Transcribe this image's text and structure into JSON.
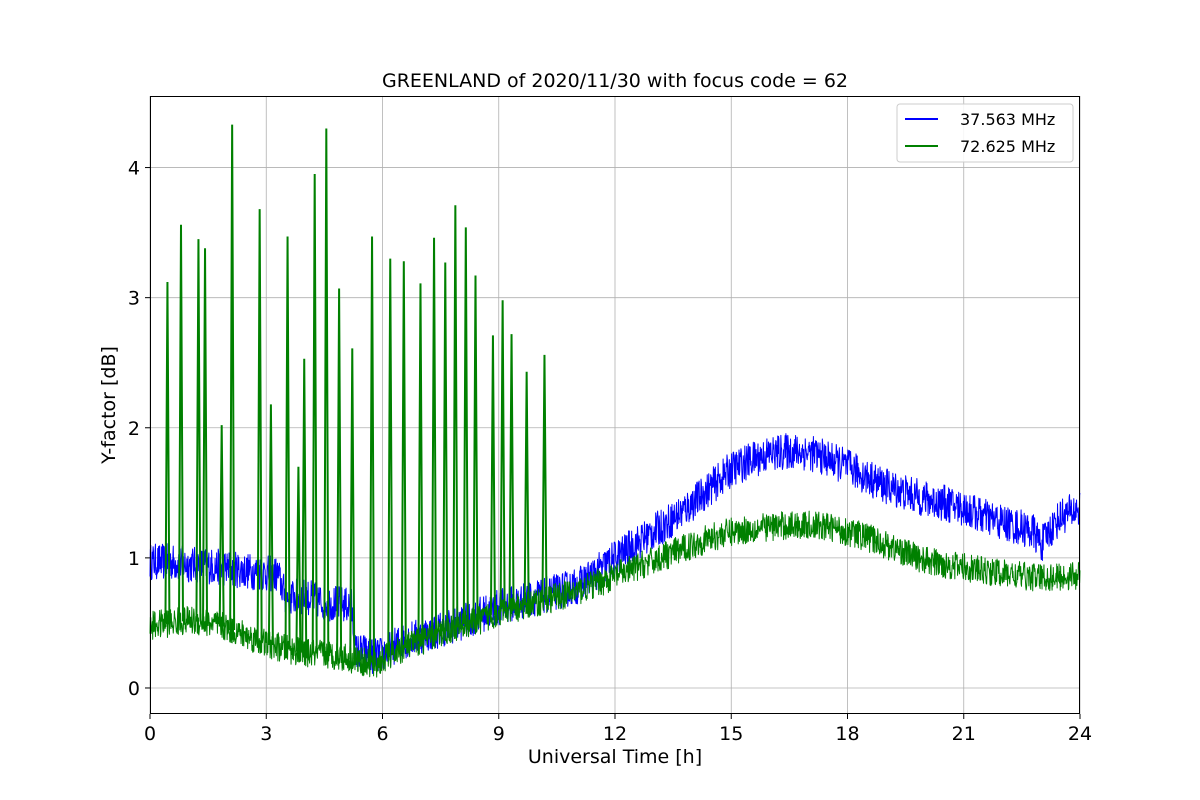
{
  "chart_data": {
    "type": "line",
    "title": "GREENLAND of 2020/11/30 with focus code = 62",
    "xlabel": "Universal Time [h]",
    "ylabel": "Y-factor [dB]",
    "xlim": [
      0,
      24
    ],
    "ylim": [
      -0.2,
      4.55
    ],
    "xticks": [
      0,
      3,
      6,
      9,
      12,
      15,
      18,
      21,
      24
    ],
    "yticks": [
      0,
      1,
      2,
      3,
      4
    ],
    "grid": true,
    "legend_position": "top-right",
    "series": [
      {
        "name": "37.563 MHz",
        "color": "#0000ff",
        "noise": 0.14,
        "x": [
          0,
          0.5,
          1,
          1.5,
          2,
          2.5,
          3,
          3.3,
          3.5,
          4,
          4.5,
          5,
          5.2,
          5.3,
          5.5,
          5.8,
          6,
          6.3,
          6.5,
          7,
          7.5,
          8,
          8.5,
          9,
          9.5,
          10,
          10.5,
          11,
          11.5,
          12,
          12.5,
          13,
          13.5,
          14,
          14.5,
          15,
          15.5,
          16,
          16.5,
          17,
          17.5,
          18,
          18.5,
          19,
          19.5,
          20,
          20.5,
          21,
          21.5,
          22,
          22.5,
          22.8,
          23,
          23.2,
          23.5,
          24
        ],
        "values": [
          0.97,
          0.97,
          0.95,
          0.94,
          0.92,
          0.9,
          0.88,
          0.87,
          0.7,
          0.7,
          0.66,
          0.64,
          0.63,
          0.28,
          0.28,
          0.24,
          0.26,
          0.32,
          0.36,
          0.4,
          0.45,
          0.5,
          0.56,
          0.62,
          0.66,
          0.7,
          0.74,
          0.78,
          0.88,
          1.0,
          1.1,
          1.2,
          1.3,
          1.42,
          1.55,
          1.68,
          1.75,
          1.8,
          1.82,
          1.81,
          1.76,
          1.7,
          1.62,
          1.55,
          1.5,
          1.45,
          1.42,
          1.38,
          1.32,
          1.27,
          1.23,
          1.2,
          1.1,
          1.2,
          1.32,
          1.38
        ]
      },
      {
        "name": "72.625 MHz",
        "color": "#008000",
        "noise": 0.11,
        "x": [
          0,
          0.5,
          1,
          1.5,
          2,
          2.5,
          3,
          3.5,
          4,
          4.5,
          5,
          5.5,
          5.8,
          6,
          6.5,
          7,
          7.5,
          8,
          8.5,
          9,
          9.5,
          10,
          10.5,
          11,
          11.5,
          12,
          12.5,
          13,
          13.5,
          14,
          14.5,
          15,
          15.5,
          16,
          16.5,
          17,
          17.5,
          18,
          18.5,
          19,
          19.5,
          20,
          20.5,
          21,
          21.5,
          22,
          22.5,
          23,
          23.5,
          24
        ],
        "values": [
          0.48,
          0.5,
          0.52,
          0.5,
          0.46,
          0.4,
          0.34,
          0.3,
          0.27,
          0.26,
          0.24,
          0.2,
          0.17,
          0.22,
          0.3,
          0.36,
          0.42,
          0.48,
          0.52,
          0.58,
          0.62,
          0.66,
          0.7,
          0.74,
          0.8,
          0.86,
          0.92,
          0.98,
          1.04,
          1.1,
          1.16,
          1.2,
          1.22,
          1.24,
          1.25,
          1.25,
          1.24,
          1.2,
          1.16,
          1.1,
          1.04,
          0.98,
          0.95,
          0.93,
          0.9,
          0.88,
          0.86,
          0.85,
          0.85,
          0.87
        ]
      }
    ],
    "spikes": [
      {
        "x": 0.45,
        "y": 3.12
      },
      {
        "x": 0.8,
        "y": 3.56
      },
      {
        "x": 1.25,
        "y": 3.45
      },
      {
        "x": 1.42,
        "y": 3.38
      },
      {
        "x": 1.85,
        "y": 2.02
      },
      {
        "x": 2.12,
        "y": 4.33
      },
      {
        "x": 2.83,
        "y": 3.68
      },
      {
        "x": 3.12,
        "y": 2.18
      },
      {
        "x": 3.55,
        "y": 3.47
      },
      {
        "x": 3.83,
        "y": 1.7
      },
      {
        "x": 3.98,
        "y": 2.53
      },
      {
        "x": 4.25,
        "y": 3.95
      },
      {
        "x": 4.55,
        "y": 4.3
      },
      {
        "x": 4.88,
        "y": 3.07
      },
      {
        "x": 5.22,
        "y": 2.61
      },
      {
        "x": 5.73,
        "y": 3.47
      },
      {
        "x": 6.2,
        "y": 3.3
      },
      {
        "x": 6.55,
        "y": 3.28
      },
      {
        "x": 6.98,
        "y": 3.11
      },
      {
        "x": 7.33,
        "y": 3.46
      },
      {
        "x": 7.62,
        "y": 3.27
      },
      {
        "x": 7.88,
        "y": 3.71
      },
      {
        "x": 8.15,
        "y": 3.54
      },
      {
        "x": 8.4,
        "y": 3.17
      },
      {
        "x": 8.85,
        "y": 2.71
      },
      {
        "x": 9.1,
        "y": 2.98
      },
      {
        "x": 9.33,
        "y": 2.72
      },
      {
        "x": 9.72,
        "y": 2.43
      },
      {
        "x": 10.18,
        "y": 2.56
      }
    ]
  }
}
